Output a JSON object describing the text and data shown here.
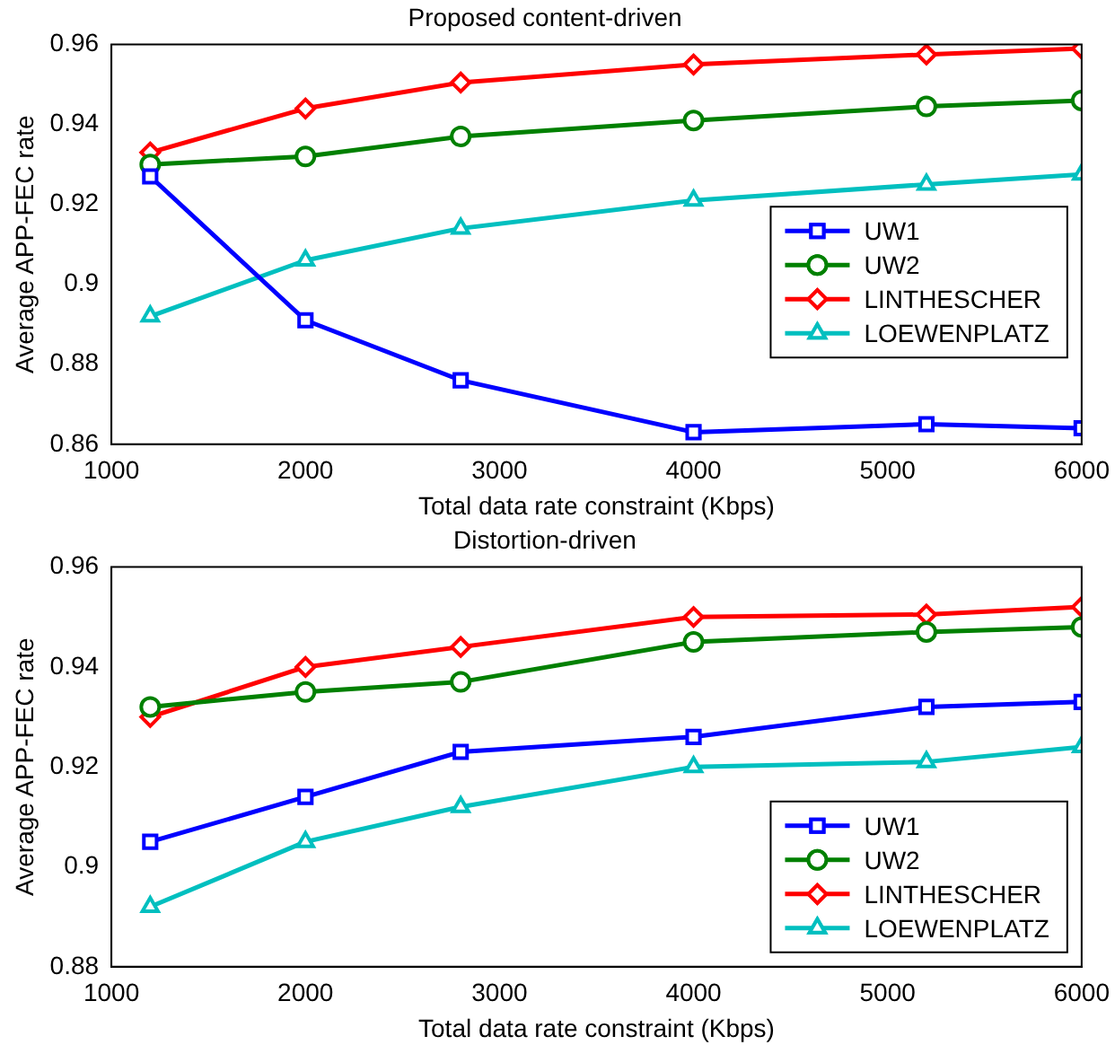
{
  "chart_data": [
    {
      "type": "line",
      "title": "Proposed content-driven",
      "xlabel": "Total data rate constraint (Kbps)",
      "ylabel": "Average APP-FEC rate",
      "x": [
        1200,
        2000,
        2800,
        4000,
        5200,
        6000
      ],
      "xlim": [
        1000,
        6000
      ],
      "xticks": [
        1000,
        2000,
        3000,
        4000,
        5000,
        6000
      ],
      "ylim": [
        0.86,
        0.96
      ],
      "yticks": [
        0.86,
        0.88,
        0.9,
        0.92,
        0.94,
        0.96
      ],
      "grid": false,
      "legend": "right",
      "series": [
        {
          "name": "UW1",
          "color": "#0000ff",
          "marker": "square",
          "values": [
            0.927,
            0.891,
            0.876,
            0.863,
            0.865,
            0.864
          ]
        },
        {
          "name": "UW2",
          "color": "#008000",
          "marker": "circle",
          "values": [
            0.93,
            0.932,
            0.937,
            0.941,
            0.9445,
            0.946
          ]
        },
        {
          "name": "LINTHESCHER",
          "color": "#ff0000",
          "marker": "diamond",
          "values": [
            0.933,
            0.944,
            0.9505,
            0.955,
            0.9575,
            0.959
          ]
        },
        {
          "name": "LOEWENPLATZ",
          "color": "#00bfbf",
          "marker": "triangle",
          "values": [
            0.892,
            0.906,
            0.914,
            0.921,
            0.925,
            0.9275
          ]
        }
      ]
    },
    {
      "type": "line",
      "title": "Distortion-driven",
      "xlabel": "Total data rate constraint (Kbps)",
      "ylabel": "Average APP-FEC rate",
      "x": [
        1200,
        2000,
        2800,
        4000,
        5200,
        6000
      ],
      "xlim": [
        1000,
        6000
      ],
      "xticks": [
        1000,
        2000,
        3000,
        4000,
        5000,
        6000
      ],
      "ylim": [
        0.88,
        0.96
      ],
      "yticks": [
        0.88,
        0.9,
        0.92,
        0.94,
        0.96
      ],
      "grid": false,
      "legend": "bottom right",
      "series": [
        {
          "name": "UW1",
          "color": "#0000ff",
          "marker": "square",
          "values": [
            0.905,
            0.914,
            0.923,
            0.926,
            0.932,
            0.933
          ]
        },
        {
          "name": "UW2",
          "color": "#008000",
          "marker": "circle",
          "values": [
            0.932,
            0.935,
            0.937,
            0.945,
            0.947,
            0.948
          ]
        },
        {
          "name": "LINTHESCHER",
          "color": "#ff0000",
          "marker": "diamond",
          "values": [
            0.93,
            0.94,
            0.944,
            0.95,
            0.9505,
            0.952
          ]
        },
        {
          "name": "LOEWENPLATZ",
          "color": "#00bfbf",
          "marker": "triangle",
          "values": [
            0.892,
            0.905,
            0.912,
            0.92,
            0.921,
            0.924
          ]
        }
      ]
    }
  ]
}
